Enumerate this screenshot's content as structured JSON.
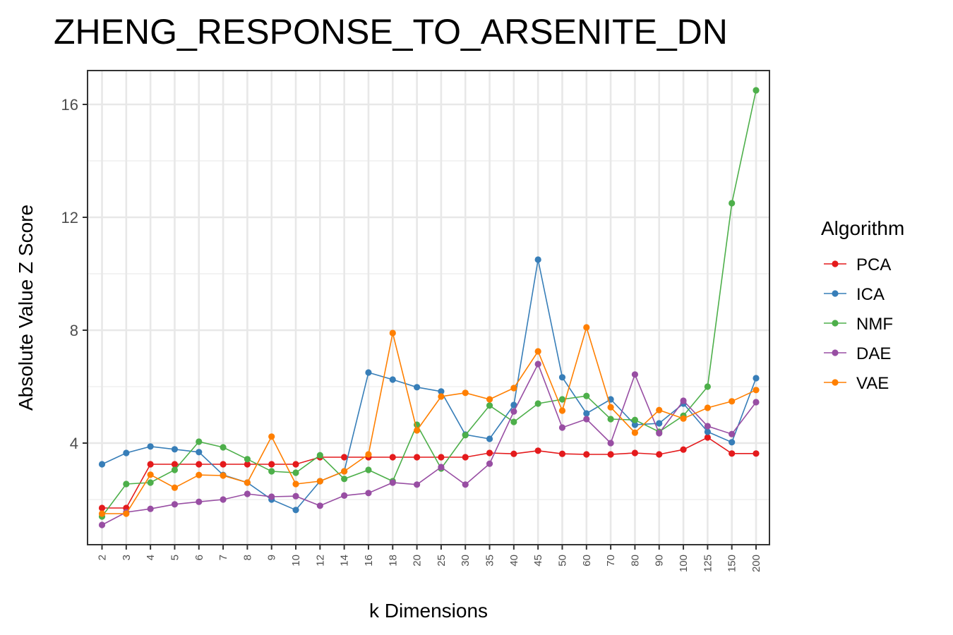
{
  "chart_data": {
    "type": "line",
    "title": "ZHENG_RESPONSE_TO_ARSENITE_DN",
    "xlabel": "k Dimensions",
    "ylabel": "Absolute Value Z Score",
    "categories": [
      "2",
      "3",
      "4",
      "5",
      "6",
      "7",
      "8",
      "9",
      "10",
      "12",
      "14",
      "16",
      "18",
      "20",
      "25",
      "30",
      "35",
      "40",
      "45",
      "50",
      "60",
      "70",
      "80",
      "90",
      "100",
      "125",
      "150",
      "200"
    ],
    "yticks": [
      4,
      8,
      12,
      16
    ],
    "ylim": [
      0.4,
      17.2
    ],
    "grid": true,
    "legend": {
      "title": "Algorithm",
      "position": "right"
    },
    "series": [
      {
        "name": "PCA",
        "color": "#e41a1c",
        "values": [
          1.7,
          1.7,
          3.25,
          3.25,
          3.25,
          3.25,
          3.25,
          3.25,
          3.25,
          3.5,
          3.5,
          3.5,
          3.5,
          3.5,
          3.5,
          3.5,
          3.65,
          3.62,
          3.73,
          3.62,
          3.6,
          3.6,
          3.65,
          3.6,
          3.77,
          4.2,
          3.63,
          3.63
        ]
      },
      {
        "name": "ICA",
        "color": "#377eb8",
        "values": [
          3.25,
          3.65,
          3.88,
          3.78,
          3.68,
          2.87,
          2.6,
          2.0,
          1.63,
          2.65,
          3.0,
          6.5,
          6.25,
          5.98,
          5.83,
          4.3,
          4.15,
          5.35,
          10.5,
          6.33,
          5.05,
          5.55,
          4.65,
          4.7,
          5.4,
          4.4,
          4.03,
          6.3
        ]
      },
      {
        "name": "NMF",
        "color": "#4daf4a",
        "values": [
          1.4,
          2.55,
          2.6,
          3.05,
          4.05,
          3.85,
          3.43,
          3.0,
          2.95,
          3.57,
          2.73,
          3.05,
          2.65,
          4.65,
          3.1,
          4.28,
          5.33,
          4.75,
          5.4,
          5.55,
          5.67,
          4.85,
          4.82,
          4.4,
          4.97,
          6.0,
          12.5,
          16.5
        ]
      },
      {
        "name": "DAE",
        "color": "#984ea3",
        "values": [
          1.1,
          1.55,
          1.67,
          1.83,
          1.92,
          2.0,
          2.2,
          2.1,
          2.12,
          1.78,
          2.14,
          2.23,
          2.6,
          2.53,
          3.15,
          2.53,
          3.27,
          5.12,
          6.8,
          4.55,
          4.85,
          4.0,
          6.43,
          4.35,
          5.5,
          4.6,
          4.32,
          5.45
        ]
      },
      {
        "name": "VAE",
        "color": "#ff7f00",
        "values": [
          1.5,
          1.5,
          2.88,
          2.42,
          2.87,
          2.85,
          2.6,
          4.23,
          2.55,
          2.65,
          3.0,
          3.6,
          7.9,
          4.45,
          5.65,
          5.78,
          5.55,
          5.95,
          7.25,
          5.15,
          8.1,
          5.27,
          4.37,
          5.17,
          4.87,
          5.25,
          5.48,
          5.88
        ]
      }
    ]
  }
}
